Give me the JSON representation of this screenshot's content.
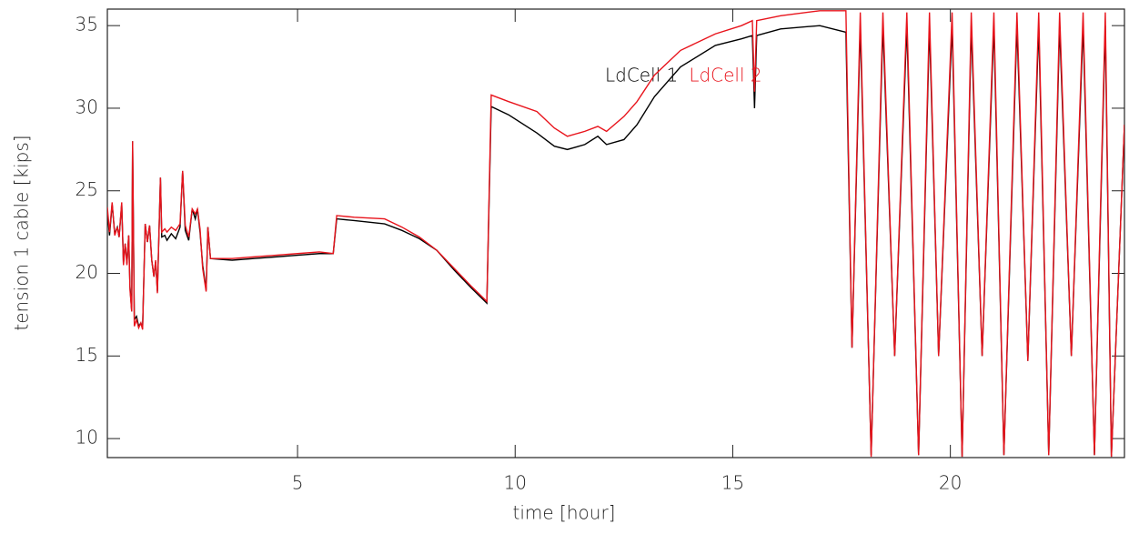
{
  "chart_data": {
    "type": "line",
    "x_label": "time [hour]",
    "y_label": "tension 1 cable [kips]",
    "x": [
      0.63,
      0.68,
      0.74,
      0.8,
      0.86,
      0.9,
      0.96,
      1.0,
      1.04,
      1.08,
      1.12,
      1.15,
      1.19,
      1.21,
      1.25,
      1.3,
      1.35,
      1.4,
      1.44,
      1.5,
      1.55,
      1.6,
      1.65,
      1.7,
      1.74,
      1.78,
      1.85,
      1.88,
      1.95,
      2.0,
      2.1,
      2.2,
      2.3,
      2.36,
      2.42,
      2.5,
      2.58,
      2.65,
      2.7,
      2.76,
      2.82,
      2.9,
      2.94,
      3.0,
      3.5,
      4.0,
      4.5,
      5.0,
      5.5,
      5.82,
      5.9,
      6.3,
      7.0,
      7.4,
      7.8,
      8.2,
      8.6,
      9.0,
      9.35,
      9.45,
      9.85,
      10.5,
      10.9,
      11.2,
      11.6,
      11.9,
      12.1,
      12.5,
      12.8,
      13.2,
      13.8,
      14.6,
      15.2,
      15.45,
      15.5,
      15.55,
      16.1,
      17.0,
      17.6,
      17.74,
      17.93,
      18.18,
      18.45,
      18.72,
      19.0,
      19.27,
      19.52,
      19.73,
      20.04,
      20.27,
      20.48,
      20.73,
      21.0,
      21.23,
      21.53,
      21.78,
      22.03,
      22.26,
      22.51,
      22.78,
      23.05,
      23.31,
      23.56,
      23.7,
      24.0
    ],
    "series": [
      {
        "name": "LdCell 1",
        "color": "#000000",
        "values": [
          23.7,
          22.3,
          24.2,
          22.4,
          22.8,
          22.2,
          24.2,
          20.6,
          21.8,
          20.6,
          22.3,
          19.2,
          17.7,
          28.0,
          17.2,
          17.4,
          16.8,
          17.0,
          16.7,
          23.0,
          21.9,
          22.9,
          20.8,
          19.8,
          20.7,
          18.9,
          25.8,
          22.2,
          22.3,
          22.0,
          22.4,
          22.1,
          22.8,
          26.2,
          22.6,
          22.0,
          23.9,
          23.3,
          23.9,
          22.5,
          20.5,
          19.0,
          22.8,
          20.9,
          20.8,
          20.9,
          21.0,
          21.1,
          21.2,
          21.2,
          23.3,
          23.2,
          23.0,
          22.6,
          22.1,
          21.4,
          20.2,
          19.1,
          18.2,
          30.1,
          29.6,
          28.5,
          27.7,
          27.5,
          27.8,
          28.3,
          27.8,
          28.1,
          29.0,
          30.7,
          32.5,
          33.8,
          34.2,
          34.4,
          30.0,
          34.4,
          34.8,
          35.0,
          34.6,
          15.5,
          35.0,
          9.0,
          35.0,
          15.0,
          35.0,
          9.0,
          35.0,
          15.0,
          35.0,
          8.9,
          35.0,
          15.0,
          35.0,
          9.0,
          35.0,
          14.7,
          35.0,
          9.0,
          35.0,
          15.0,
          35.0,
          9.0,
          35.0,
          8.9,
          29.0
        ]
      },
      {
        "name": "LdCell 2",
        "color": "#e8141c",
        "values": [
          24.0,
          22.5,
          24.3,
          22.3,
          22.8,
          22.2,
          24.3,
          20.5,
          21.8,
          20.5,
          22.3,
          19.0,
          17.7,
          28.0,
          16.8,
          17.2,
          16.7,
          17.0,
          16.6,
          23.0,
          21.9,
          22.9,
          20.8,
          19.8,
          20.8,
          18.8,
          25.8,
          22.5,
          22.7,
          22.5,
          22.8,
          22.6,
          23.0,
          26.2,
          22.9,
          22.2,
          23.9,
          23.6,
          23.9,
          22.7,
          20.3,
          18.9,
          22.8,
          20.9,
          20.9,
          21.0,
          21.1,
          21.2,
          21.3,
          21.2,
          23.5,
          23.4,
          23.3,
          22.8,
          22.2,
          21.4,
          20.3,
          19.2,
          18.3,
          30.8,
          30.4,
          29.8,
          28.8,
          28.3,
          28.6,
          28.9,
          28.6,
          29.5,
          30.4,
          32.0,
          33.5,
          34.5,
          35.0,
          35.3,
          31.0,
          35.3,
          35.6,
          35.9,
          35.9,
          15.5,
          35.8,
          8.9,
          35.8,
          15.0,
          35.8,
          9.0,
          35.8,
          15.0,
          35.8,
          8.9,
          35.8,
          15.0,
          35.8,
          9.0,
          35.8,
          14.7,
          35.8,
          9.0,
          35.8,
          15.0,
          35.8,
          9.0,
          35.8,
          8.9,
          29.0
        ]
      }
    ],
    "xlim": [
      0.63,
      24.0
    ],
    "xticks": [
      5,
      10,
      15,
      20
    ],
    "ylim": [
      8.85,
      36.0
    ],
    "yticks": [
      10,
      15,
      20,
      25,
      30,
      35
    ],
    "grid": false
  }
}
